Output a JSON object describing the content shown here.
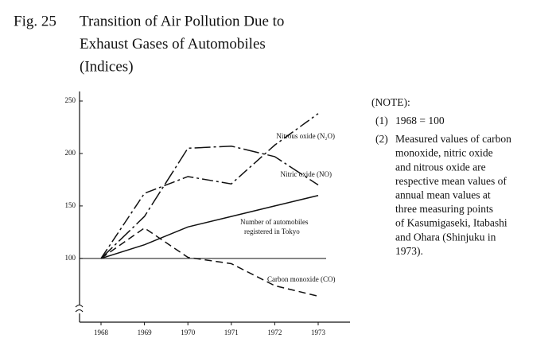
{
  "chart_data": {
    "type": "line",
    "figure": "Fig. 25",
    "title": [
      "Transition of Air Pollution Due to",
      "Exhaust Gases of Automobiles",
      "(Indices)"
    ],
    "categories": [
      "1968",
      "1969",
      "1970",
      "1971",
      "1972",
      "1973"
    ],
    "ylim": [
      40,
      260
    ],
    "yticks": [
      100,
      150,
      200,
      250
    ],
    "series": [
      {
        "name": "Nitrous oxide (N₂O)",
        "color": "#111111",
        "values": [
          100,
          162,
          178,
          171,
          208,
          238
        ]
      },
      {
        "name": "Nitric oxide (NO)",
        "color": "#111111",
        "values": [
          100,
          140,
          205,
          207,
          197,
          170
        ]
      },
      {
        "name": "Number of automobiles registered in Tokyo",
        "color": "#111111",
        "values": [
          100,
          113,
          130,
          140,
          150,
          160
        ]
      },
      {
        "name": "Carbon monoxide (CO)",
        "color": "#111111",
        "values": [
          100,
          129,
          101,
          95,
          74,
          64
        ]
      }
    ],
    "note_title": "(NOTE):",
    "notes": [
      {
        "number": "(1)",
        "lines": [
          "1968 = 100"
        ]
      },
      {
        "number": "(2)",
        "lines": [
          "Measured values of carbon",
          "monoxide, nitric oxide",
          "and nitrous oxide are",
          "respective mean values of",
          "annual mean values at",
          "three measuring points",
          "of Kasumigaseki, Itabashi",
          "and Ohara (Shinjuku in",
          "1973)."
        ]
      }
    ]
  }
}
